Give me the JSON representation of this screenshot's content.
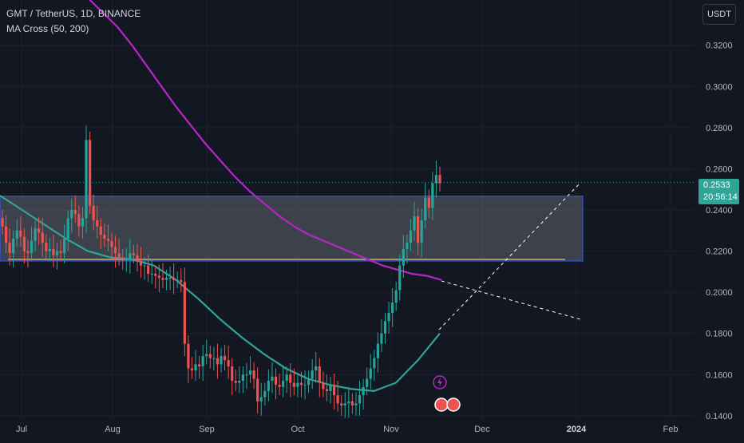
{
  "header": {
    "symbol_line": "GMT / TetherUS, 1D, BINANCE",
    "indicator_line": "MA Cross (50, 200)"
  },
  "price_axis": {
    "unit_label": "USDT",
    "current_price": "0.2533",
    "countdown": "20:56:14"
  },
  "chart_data": {
    "type": "candlestick",
    "title": "GMT / TetherUS, 1D, BINANCE",
    "y_ticks": [
      "0.3200",
      "0.3000",
      "0.2800",
      "0.2600",
      "0.2400",
      "0.2200",
      "0.2000",
      "0.1800",
      "0.1600",
      "0.1400"
    ],
    "x_ticks": [
      "Jul",
      "Aug",
      "Sep",
      "Oct",
      "Nov",
      "Dec",
      "2024",
      "Feb"
    ],
    "ylim": [
      0.1384,
      0.342
    ],
    "grid": true,
    "current_price": 0.2533,
    "closes": [
      0.232,
      0.224,
      0.219,
      0.226,
      0.23,
      0.227,
      0.22,
      0.219,
      0.225,
      0.231,
      0.229,
      0.224,
      0.22,
      0.221,
      0.218,
      0.22,
      0.219,
      0.226,
      0.236,
      0.24,
      0.238,
      0.232,
      0.236,
      0.274,
      0.242,
      0.235,
      0.232,
      0.228,
      0.226,
      0.225,
      0.222,
      0.219,
      0.217,
      0.216,
      0.216,
      0.219,
      0.218,
      0.215,
      0.213,
      0.213,
      0.209,
      0.209,
      0.208,
      0.207,
      0.206,
      0.207,
      0.207,
      0.206,
      0.206,
      0.205,
      0.175,
      0.163,
      0.162,
      0.165,
      0.164,
      0.169,
      0.17,
      0.168,
      0.168,
      0.165,
      0.169,
      0.167,
      0.164,
      0.157,
      0.156,
      0.157,
      0.16,
      0.16,
      0.162,
      0.158,
      0.147,
      0.149,
      0.152,
      0.157,
      0.159,
      0.155,
      0.154,
      0.157,
      0.16,
      0.156,
      0.154,
      0.156,
      0.155,
      0.155,
      0.158,
      0.162,
      0.164,
      0.156,
      0.153,
      0.152,
      0.155,
      0.15,
      0.146,
      0.145,
      0.146,
      0.147,
      0.145,
      0.146,
      0.15,
      0.154,
      0.158,
      0.163,
      0.168,
      0.175,
      0.18,
      0.186,
      0.19,
      0.195,
      0.201,
      0.213,
      0.221,
      0.224,
      0.23,
      0.237,
      0.224,
      0.235,
      0.246,
      0.241,
      0.253,
      0.257,
      0.253
    ],
    "key_level_zone": {
      "top": 0.2467,
      "bottom": 0.2152
    },
    "series": [
      {
        "name": "MA 200",
        "color": "#b526c9",
        "values": [
          0.343,
          0.336,
          0.329,
          0.32,
          0.31,
          0.3,
          0.29,
          0.281,
          0.272,
          0.264,
          0.256,
          0.249,
          0.243,
          0.237,
          0.232,
          0.228,
          0.225,
          0.222,
          0.219,
          0.216,
          0.213,
          0.211,
          0.209,
          0.208,
          0.206
        ]
      },
      {
        "name": "MA 50",
        "color": "#2ea597",
        "values": [
          0.247,
          0.24,
          0.233,
          0.226,
          0.22,
          0.217,
          0.216,
          0.213,
          0.206,
          0.197,
          0.187,
          0.178,
          0.17,
          0.163,
          0.158,
          0.155,
          0.153,
          0.152,
          0.156,
          0.167,
          0.18
        ]
      }
    ]
  }
}
